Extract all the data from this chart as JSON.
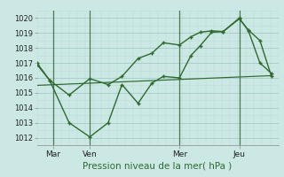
{
  "xlabel": "Pression niveau de la mer( hPa )",
  "bg_color": "#cce8e4",
  "grid_color_major": "#aacfcb",
  "grid_color_minor": "#bbdbd7",
  "line_color": "#2d6a2d",
  "line_color_light": "#4a8a4a",
  "xlim": [
    0,
    10.5
  ],
  "ylim": [
    1011.5,
    1020.5
  ],
  "yticks": [
    1012,
    1013,
    1014,
    1015,
    1016,
    1017,
    1018,
    1019,
    1020
  ],
  "xtick_positions": [
    0.7,
    2.3,
    6.2,
    8.8
  ],
  "xtick_labels": [
    "Mar",
    "Ven",
    "Mer",
    "Jeu"
  ],
  "vlines": [
    0.7,
    2.3,
    6.2,
    8.8
  ],
  "series1_x": [
    0.0,
    0.55,
    1.4,
    2.3,
    3.1,
    3.7,
    4.4,
    5.0,
    5.5,
    6.2,
    6.7,
    7.1,
    7.6,
    8.1,
    8.8,
    9.2,
    9.7,
    10.2
  ],
  "series1_y": [
    1017.0,
    1015.85,
    1014.85,
    1015.95,
    1015.55,
    1016.1,
    1017.3,
    1017.65,
    1018.35,
    1018.2,
    1018.75,
    1019.05,
    1019.15,
    1019.1,
    1019.95,
    1019.2,
    1018.5,
    1016.1
  ],
  "series2_x": [
    0.0,
    0.55,
    1.4,
    2.3,
    3.1,
    3.7,
    4.4,
    5.0,
    5.5,
    6.2,
    6.7,
    7.1,
    7.6,
    8.1,
    8.8,
    9.2,
    9.7,
    10.2
  ],
  "series2_y": [
    1016.9,
    1015.85,
    1013.0,
    1012.05,
    1013.0,
    1015.55,
    1014.3,
    1015.65,
    1016.1,
    1016.0,
    1017.5,
    1018.15,
    1019.05,
    1019.1,
    1020.0,
    1019.15,
    1017.0,
    1016.3
  ],
  "series3_x": [
    0.0,
    10.2
  ],
  "series3_y": [
    1015.5,
    1016.15
  ]
}
